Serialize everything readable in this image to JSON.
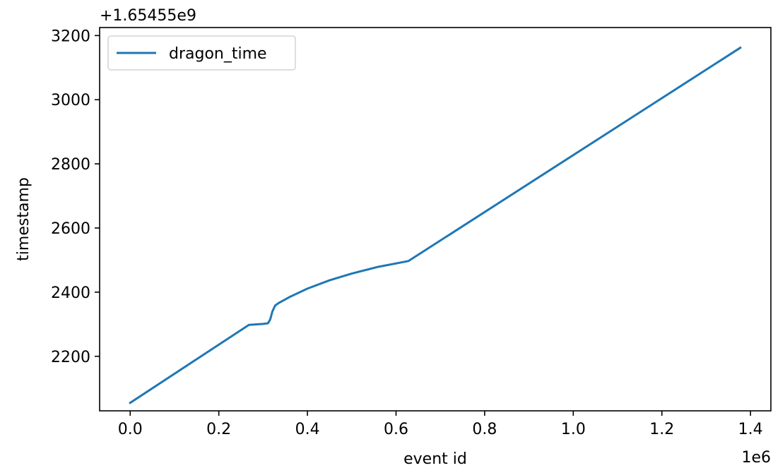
{
  "chart_data": {
    "type": "line",
    "xlabel": "event id",
    "ylabel": "timestamp",
    "x_offset_text": "1e6",
    "y_offset_text": "+1.65455e9",
    "x_ticks": [
      0.0,
      0.2,
      0.4,
      0.6,
      0.8,
      1.0,
      1.2,
      1.4
    ],
    "x_tick_labels": [
      "0.0",
      "0.2",
      "0.4",
      "0.6",
      "0.8",
      "1.0",
      "1.2",
      "1.4"
    ],
    "y_ticks": [
      2200,
      2400,
      2600,
      2800,
      3000,
      3200
    ],
    "y_tick_labels": [
      "2200",
      "2400",
      "2600",
      "2800",
      "3000",
      "3200"
    ],
    "xlim": [
      -0.069,
      1.446
    ],
    "ylim": [
      2030,
      3225
    ],
    "grid": false,
    "legend_placement": "upper-left",
    "series": [
      {
        "name": "dragon_time",
        "color": "#1f77b4",
        "x": [
          0.0,
          0.268,
          0.3,
          0.311,
          0.316,
          0.321,
          0.327,
          0.335,
          0.36,
          0.4,
          0.45,
          0.5,
          0.56,
          0.628,
          1.377
        ],
        "y": [
          2055,
          2298,
          2301,
          2303,
          2315,
          2340,
          2358,
          2366,
          2385,
          2411,
          2437,
          2458,
          2479,
          2497,
          3162
        ]
      }
    ]
  }
}
